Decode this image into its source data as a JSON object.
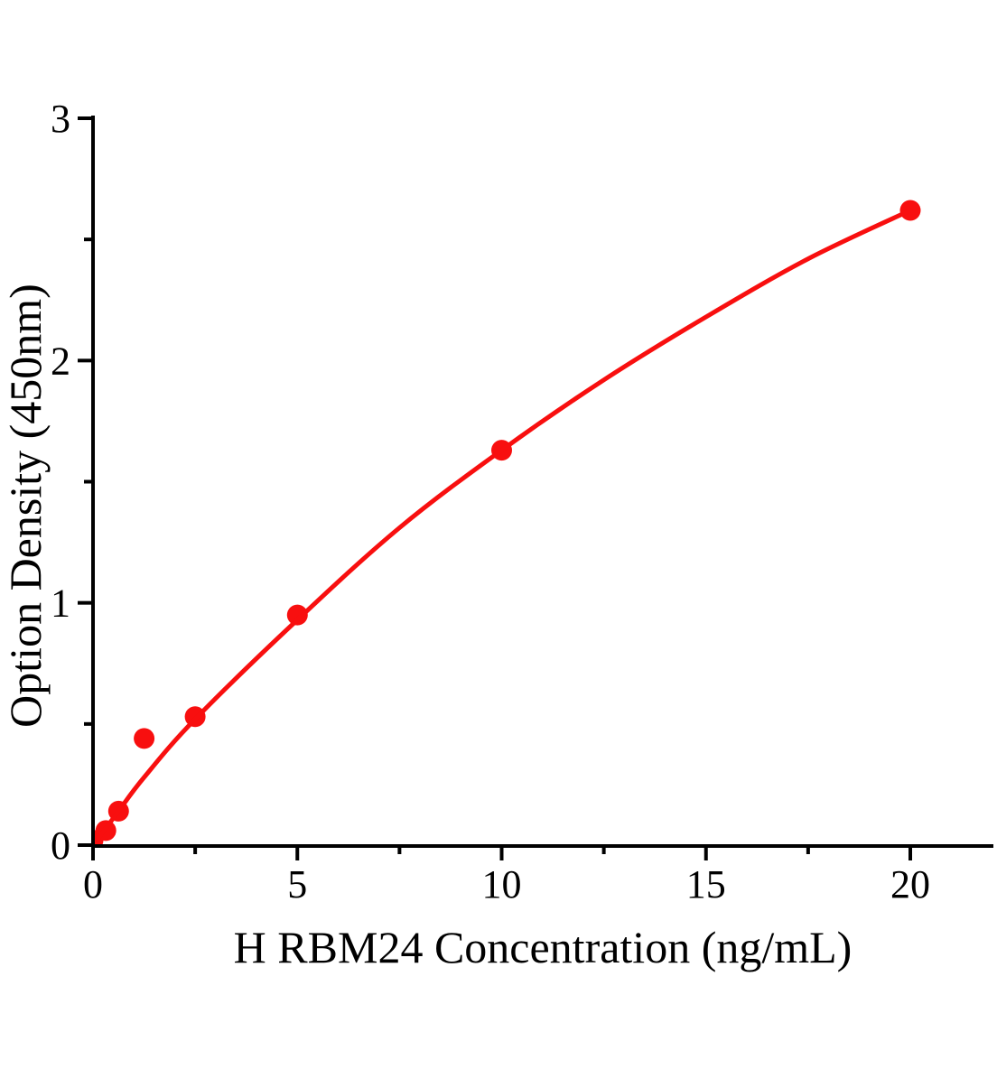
{
  "page": {
    "background": "#ffffff"
  },
  "chart_data": {
    "type": "line",
    "subtype": "scatter-with-fitted-curve",
    "title": "",
    "xlabel": "H RBM24 Concentration（ng/mL）",
    "ylabel": "Option Density（450nm）",
    "xlim": [
      0,
      22
    ],
    "ylim": [
      0,
      3
    ],
    "grid": false,
    "legend": "none",
    "x_major_ticks": [
      0,
      5,
      10,
      15,
      20
    ],
    "x_minor_ticks": [
      2.5,
      7.5,
      12.5,
      17.5
    ],
    "x_tick_labels": [
      "0",
      "5",
      "10",
      "15",
      "20"
    ],
    "y_major_ticks": [
      0,
      1,
      2,
      3
    ],
    "y_minor_ticks": [
      0.5,
      1.5,
      2.5
    ],
    "y_tick_labels": [
      "0",
      "1",
      "2",
      "3"
    ],
    "series": [
      {
        "name": "standard-points",
        "type": "scatter",
        "marker": "circle",
        "color": "#f80f0f",
        "points": [
          [
            0,
            0.02
          ],
          [
            0.313,
            0.06
          ],
          [
            0.625,
            0.14
          ],
          [
            1.25,
            0.44
          ],
          [
            2.5,
            0.53
          ],
          [
            5,
            0.95
          ],
          [
            10,
            1.63
          ],
          [
            20,
            2.62
          ]
        ]
      },
      {
        "name": "fitted-curve",
        "type": "line",
        "color": "#f80f0f",
        "points": [
          [
            0,
            0.0
          ],
          [
            0.313,
            0.07
          ],
          [
            0.625,
            0.14
          ],
          [
            1.25,
            0.28
          ],
          [
            2.5,
            0.52
          ],
          [
            5,
            0.93
          ],
          [
            7.5,
            1.31
          ],
          [
            10,
            1.63
          ],
          [
            12.5,
            1.92
          ],
          [
            15,
            2.18
          ],
          [
            17.5,
            2.42
          ],
          [
            20,
            2.62
          ]
        ]
      }
    ]
  },
  "colors": {
    "series": "#f80f0f",
    "axis": "#000000",
    "text": "#000000",
    "background": "#ffffff"
  }
}
